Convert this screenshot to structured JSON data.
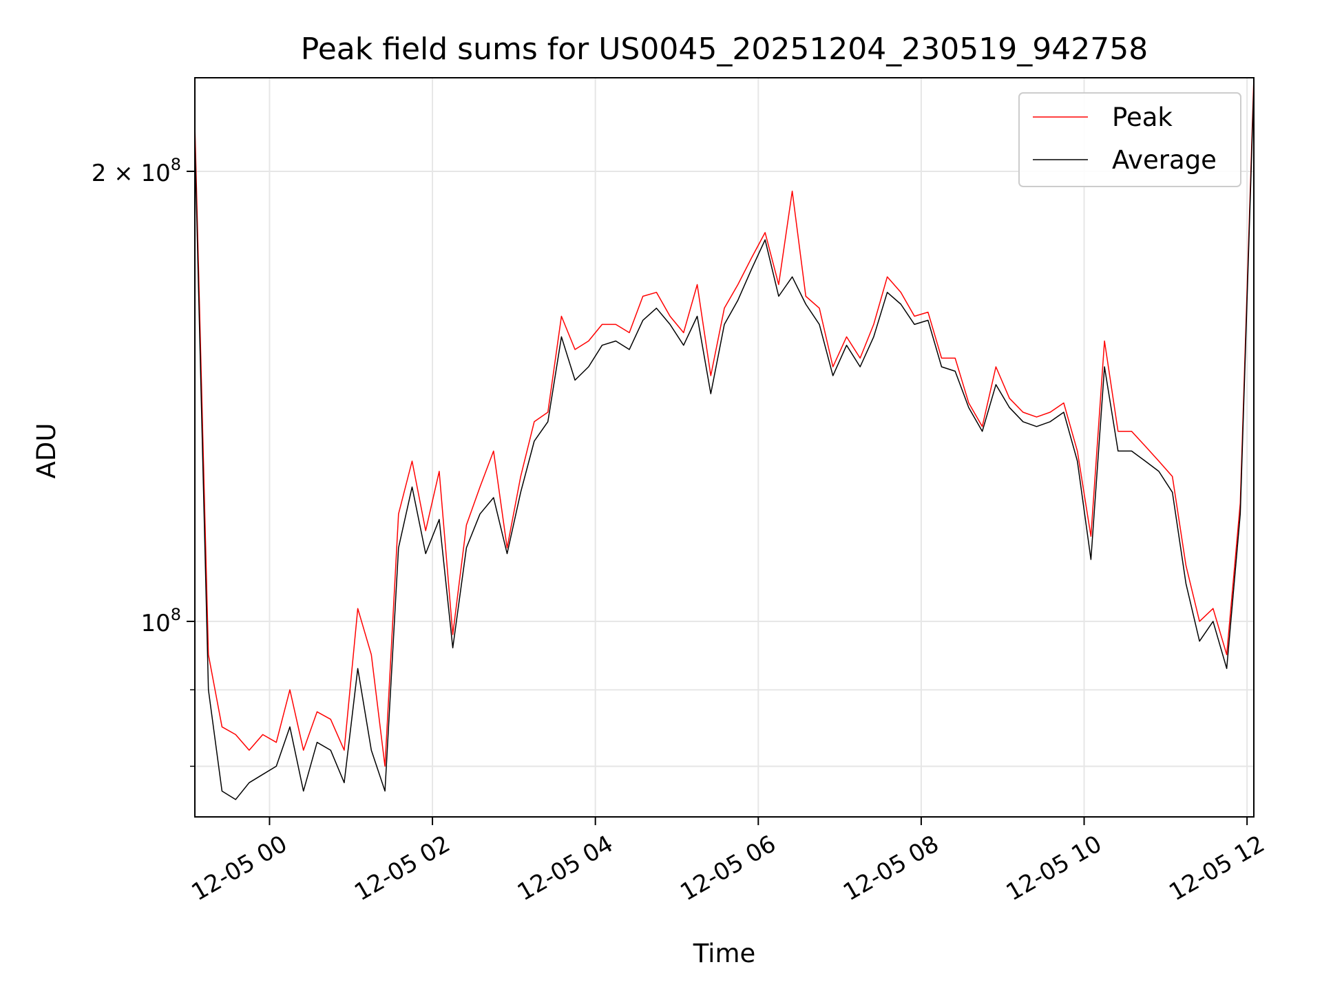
{
  "chart_data": {
    "type": "line",
    "title": "Peak field sums for US0045_20251204_230519_942758",
    "xlabel": "Time",
    "ylabel": "ADU",
    "x_axis": {
      "type": "time",
      "range": [
        "2025-12-04 23:05",
        "2025-12-05 12:05"
      ],
      "ticks": [
        {
          "value": "2025-12-05 00:00",
          "label": "12-05 00"
        },
        {
          "value": "2025-12-05 02:00",
          "label": "12-05 02"
        },
        {
          "value": "2025-12-05 04:00",
          "label": "12-05 04"
        },
        {
          "value": "2025-12-05 06:00",
          "label": "12-05 06"
        },
        {
          "value": "2025-12-05 08:00",
          "label": "12-05 08"
        },
        {
          "value": "2025-12-05 10:00",
          "label": "12-05 10"
        },
        {
          "value": "2025-12-05 12:00",
          "label": "12-05 12"
        }
      ]
    },
    "y_axis": {
      "scale": "log",
      "range": [
        74000000,
        231000000
      ],
      "major_ticks": [
        {
          "value": 100000000,
          "label_base": "10",
          "label_exp": "8",
          "label_coef": ""
        },
        {
          "value": 200000000,
          "label_base": "10",
          "label_exp": "8",
          "label_coef": "2 × "
        }
      ],
      "minor_ticks": [
        80000000,
        90000000
      ]
    },
    "grid": true,
    "legend_position": "top-right",
    "series": [
      {
        "name": "Peak",
        "color": "#ff0000",
        "x": [
          "2025-12-04 23:05",
          "2025-12-04 23:15",
          "2025-12-04 23:25",
          "2025-12-04 23:35",
          "2025-12-04 23:45",
          "2025-12-04 23:55",
          "2025-12-05 00:05",
          "2025-12-05 00:15",
          "2025-12-05 00:25",
          "2025-12-05 00:35",
          "2025-12-05 00:45",
          "2025-12-05 00:55",
          "2025-12-05 01:05",
          "2025-12-05 01:15",
          "2025-12-05 01:25",
          "2025-12-05 01:35",
          "2025-12-05 01:45",
          "2025-12-05 01:55",
          "2025-12-05 02:05",
          "2025-12-05 02:15",
          "2025-12-05 02:25",
          "2025-12-05 02:35",
          "2025-12-05 02:45",
          "2025-12-05 02:55",
          "2025-12-05 03:05",
          "2025-12-05 03:15",
          "2025-12-05 03:25",
          "2025-12-05 03:35",
          "2025-12-05 03:45",
          "2025-12-05 03:55",
          "2025-12-05 04:05",
          "2025-12-05 04:15",
          "2025-12-05 04:25",
          "2025-12-05 04:35",
          "2025-12-05 04:45",
          "2025-12-05 04:55",
          "2025-12-05 05:05",
          "2025-12-05 05:15",
          "2025-12-05 05:25",
          "2025-12-05 05:35",
          "2025-12-05 05:45",
          "2025-12-05 05:55",
          "2025-12-05 06:05",
          "2025-12-05 06:15",
          "2025-12-05 06:25",
          "2025-12-05 06:35",
          "2025-12-05 06:45",
          "2025-12-05 06:55",
          "2025-12-05 07:05",
          "2025-12-05 07:15",
          "2025-12-05 07:25",
          "2025-12-05 07:35",
          "2025-12-05 07:45",
          "2025-12-05 07:55",
          "2025-12-05 08:05",
          "2025-12-05 08:15",
          "2025-12-05 08:25",
          "2025-12-05 08:35",
          "2025-12-05 08:45",
          "2025-12-05 08:55",
          "2025-12-05 09:05",
          "2025-12-05 09:15",
          "2025-12-05 09:25",
          "2025-12-05 09:35",
          "2025-12-05 09:45",
          "2025-12-05 09:55",
          "2025-12-05 10:05",
          "2025-12-05 10:15",
          "2025-12-05 10:25",
          "2025-12-05 10:35",
          "2025-12-05 10:45",
          "2025-12-05 10:55",
          "2025-12-05 11:05",
          "2025-12-05 11:15",
          "2025-12-05 11:25",
          "2025-12-05 11:35",
          "2025-12-05 11:45",
          "2025-12-05 11:55",
          "2025-12-05 12:05"
        ],
        "values": [
          215000000,
          95000000,
          85000000,
          84000000,
          82000000,
          84000000,
          83000000,
          90000000,
          82000000,
          87000000,
          86000000,
          82000000,
          102000000,
          95000000,
          80000000,
          118000000,
          128000000,
          115000000,
          126000000,
          98000000,
          116000000,
          123000000,
          130000000,
          112000000,
          125000000,
          136000000,
          138000000,
          160000000,
          152000000,
          154000000,
          158000000,
          158000000,
          156000000,
          165000000,
          166000000,
          160000000,
          156000000,
          168000000,
          146000000,
          162000000,
          168000000,
          175000000,
          182000000,
          168000000,
          194000000,
          165000000,
          162000000,
          148000000,
          155000000,
          150000000,
          158000000,
          170000000,
          166000000,
          160000000,
          161000000,
          150000000,
          150000000,
          140000000,
          135000000,
          148000000,
          141000000,
          138000000,
          137000000,
          138000000,
          140000000,
          130000000,
          114000000,
          154000000,
          134000000,
          134000000,
          131000000,
          128000000,
          125000000,
          109000000,
          100000000,
          102000000,
          95000000,
          120000000,
          231000000
        ]
      },
      {
        "name": "Average",
        "color": "#000000",
        "x": [
          "2025-12-04 23:05",
          "2025-12-04 23:15",
          "2025-12-04 23:25",
          "2025-12-04 23:35",
          "2025-12-04 23:45",
          "2025-12-04 23:55",
          "2025-12-05 00:05",
          "2025-12-05 00:15",
          "2025-12-05 00:25",
          "2025-12-05 00:35",
          "2025-12-05 00:45",
          "2025-12-05 00:55",
          "2025-12-05 01:05",
          "2025-12-05 01:15",
          "2025-12-05 01:25",
          "2025-12-05 01:35",
          "2025-12-05 01:45",
          "2025-12-05 01:55",
          "2025-12-05 02:05",
          "2025-12-05 02:15",
          "2025-12-05 02:25",
          "2025-12-05 02:35",
          "2025-12-05 02:45",
          "2025-12-05 02:55",
          "2025-12-05 03:05",
          "2025-12-05 03:15",
          "2025-12-05 03:25",
          "2025-12-05 03:35",
          "2025-12-05 03:45",
          "2025-12-05 03:55",
          "2025-12-05 04:05",
          "2025-12-05 04:15",
          "2025-12-05 04:25",
          "2025-12-05 04:35",
          "2025-12-05 04:45",
          "2025-12-05 04:55",
          "2025-12-05 05:05",
          "2025-12-05 05:15",
          "2025-12-05 05:25",
          "2025-12-05 05:35",
          "2025-12-05 05:45",
          "2025-12-05 05:55",
          "2025-12-05 06:05",
          "2025-12-05 06:15",
          "2025-12-05 06:25",
          "2025-12-05 06:35",
          "2025-12-05 06:45",
          "2025-12-05 06:55",
          "2025-12-05 07:05",
          "2025-12-05 07:15",
          "2025-12-05 07:25",
          "2025-12-05 07:35",
          "2025-12-05 07:45",
          "2025-12-05 07:55",
          "2025-12-05 08:05",
          "2025-12-05 08:15",
          "2025-12-05 08:25",
          "2025-12-05 08:35",
          "2025-12-05 08:45",
          "2025-12-05 08:55",
          "2025-12-05 09:05",
          "2025-12-05 09:15",
          "2025-12-05 09:25",
          "2025-12-05 09:35",
          "2025-12-05 09:45",
          "2025-12-05 09:55",
          "2025-12-05 10:05",
          "2025-12-05 10:15",
          "2025-12-05 10:25",
          "2025-12-05 10:35",
          "2025-12-05 10:45",
          "2025-12-05 10:55",
          "2025-12-05 11:05",
          "2025-12-05 11:15",
          "2025-12-05 11:25",
          "2025-12-05 11:35",
          "2025-12-05 11:45",
          "2025-12-05 11:55",
          "2025-12-05 12:05"
        ],
        "values": [
          210000000,
          90000000,
          77000000,
          76000000,
          78000000,
          79000000,
          80000000,
          85000000,
          77000000,
          83000000,
          82000000,
          78000000,
          93000000,
          82000000,
          77000000,
          112000000,
          123000000,
          111000000,
          117000000,
          96000000,
          112000000,
          118000000,
          121000000,
          111000000,
          122000000,
          132000000,
          136000000,
          155000000,
          145000000,
          148000000,
          153000000,
          154000000,
          152000000,
          159000000,
          162000000,
          158000000,
          153000000,
          160000000,
          142000000,
          158000000,
          164000000,
          172000000,
          180000000,
          165000000,
          170000000,
          163000000,
          158000000,
          146000000,
          153000000,
          148000000,
          155000000,
          166000000,
          163000000,
          158000000,
          159000000,
          148000000,
          147000000,
          139000000,
          134000000,
          144000000,
          139000000,
          136000000,
          135000000,
          136000000,
          138000000,
          128000000,
          110000000,
          148000000,
          130000000,
          130000000,
          128000000,
          126000000,
          122000000,
          106000000,
          97000000,
          100000000,
          93000000,
          118000000,
          228000000
        ]
      }
    ]
  }
}
